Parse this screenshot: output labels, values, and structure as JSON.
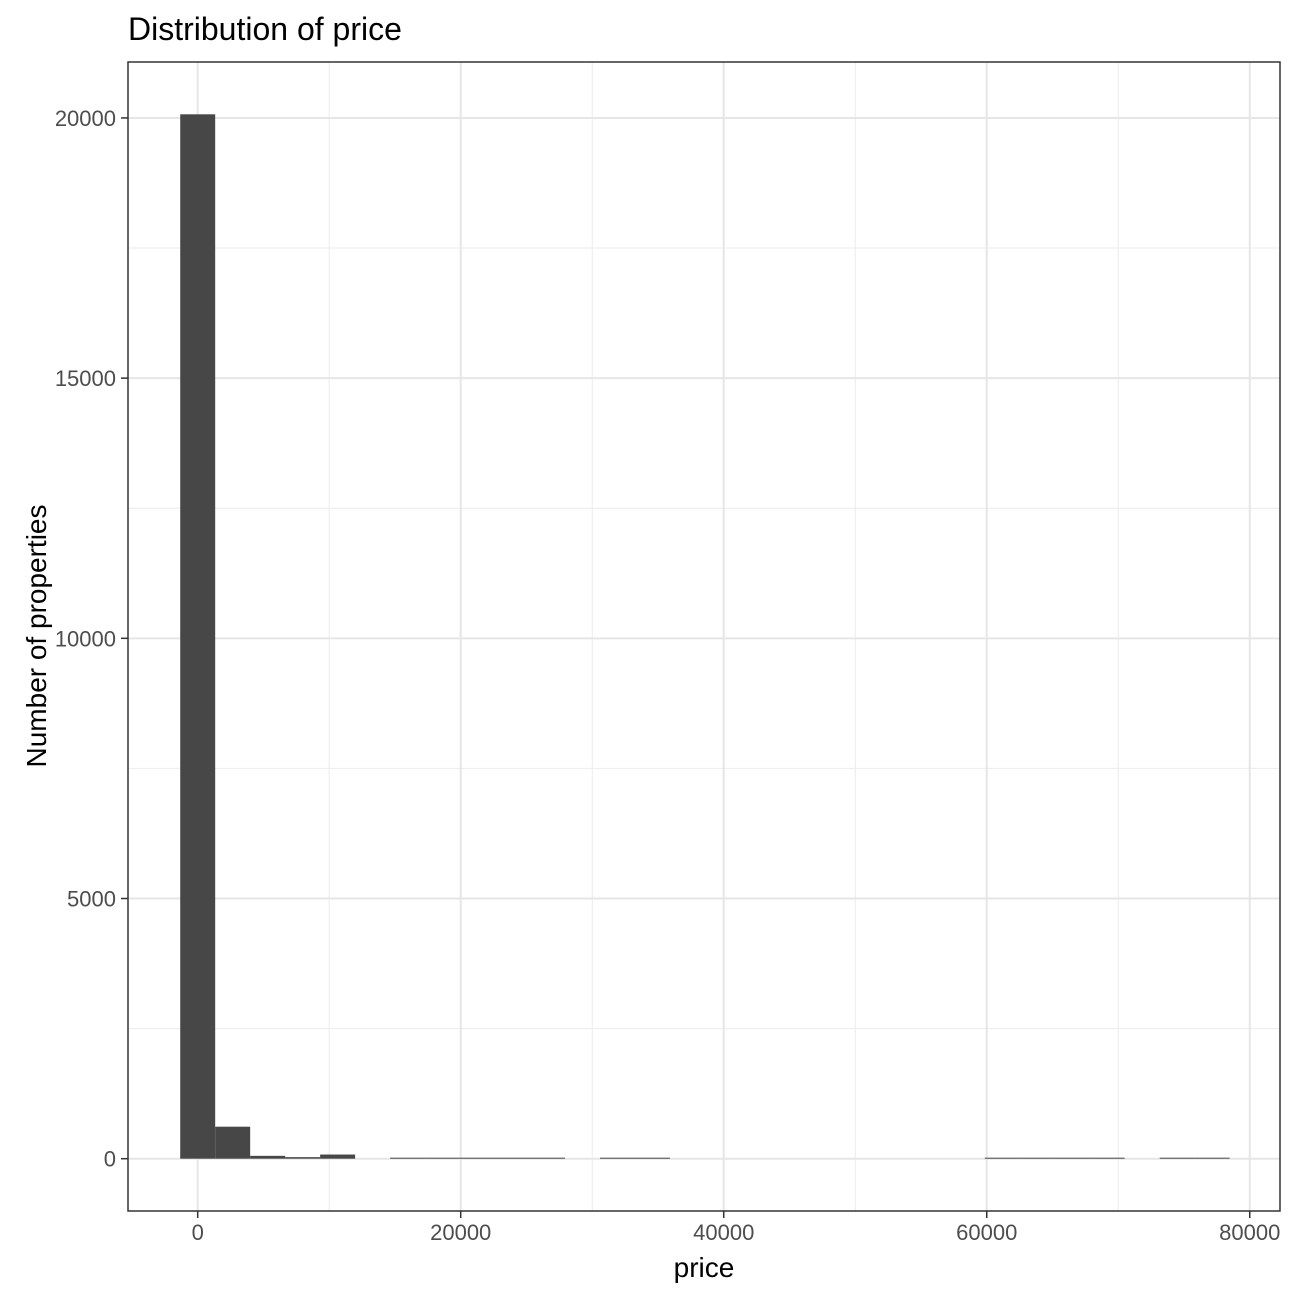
{
  "chart_data": {
    "type": "bar",
    "title": "Distribution of price",
    "xlabel": "price",
    "ylabel": "Number of properties",
    "x_ticks": [
      0,
      20000,
      40000,
      60000,
      80000
    ],
    "y_ticks": [
      0,
      5000,
      10000,
      15000,
      20000
    ],
    "x_tick_labels": [
      "0",
      "20000",
      "40000",
      "60000",
      "80000"
    ],
    "y_tick_labels": [
      "0",
      "5000",
      "10000",
      "15000",
      "20000"
    ],
    "xlim": [
      -5300,
      82300
    ],
    "ylim": [
      -1005,
      21075
    ],
    "grid": true,
    "bar_color": "#474747",
    "bins": [
      {
        "x0": -1330,
        "x1": 1330,
        "count": 20070
      },
      {
        "x0": 1330,
        "x1": 3990,
        "count": 615
      },
      {
        "x0": 3990,
        "x1": 6650,
        "count": 55
      },
      {
        "x0": 6650,
        "x1": 9310,
        "count": 30
      },
      {
        "x0": 9310,
        "x1": 11970,
        "count": 80
      },
      {
        "x0": 11970,
        "x1": 14630,
        "count": 0
      },
      {
        "x0": 14630,
        "x1": 17290,
        "count": 12
      },
      {
        "x0": 17290,
        "x1": 19950,
        "count": 2
      },
      {
        "x0": 19950,
        "x1": 22610,
        "count": 2
      },
      {
        "x0": 22610,
        "x1": 25270,
        "count": 3
      },
      {
        "x0": 25270,
        "x1": 27930,
        "count": 1
      },
      {
        "x0": 27930,
        "x1": 30590,
        "count": 0
      },
      {
        "x0": 30590,
        "x1": 33250,
        "count": 1
      },
      {
        "x0": 33250,
        "x1": 35910,
        "count": 2
      },
      {
        "x0": 35910,
        "x1": 38570,
        "count": 0
      },
      {
        "x0": 38570,
        "x1": 41230,
        "count": 0
      },
      {
        "x0": 41230,
        "x1": 43890,
        "count": 0
      },
      {
        "x0": 43890,
        "x1": 46550,
        "count": 0
      },
      {
        "x0": 46550,
        "x1": 49210,
        "count": 0
      },
      {
        "x0": 49210,
        "x1": 51870,
        "count": 0
      },
      {
        "x0": 51870,
        "x1": 54530,
        "count": 0
      },
      {
        "x0": 54530,
        "x1": 57190,
        "count": 0
      },
      {
        "x0": 57190,
        "x1": 59850,
        "count": 0
      },
      {
        "x0": 59850,
        "x1": 62510,
        "count": 1
      },
      {
        "x0": 62510,
        "x1": 65170,
        "count": 1
      },
      {
        "x0": 65170,
        "x1": 67830,
        "count": 6
      },
      {
        "x0": 67830,
        "x1": 70490,
        "count": 2
      },
      {
        "x0": 70490,
        "x1": 73150,
        "count": 0
      },
      {
        "x0": 73150,
        "x1": 75810,
        "count": 1
      },
      {
        "x0": 75810,
        "x1": 78470,
        "count": 2
      }
    ]
  }
}
